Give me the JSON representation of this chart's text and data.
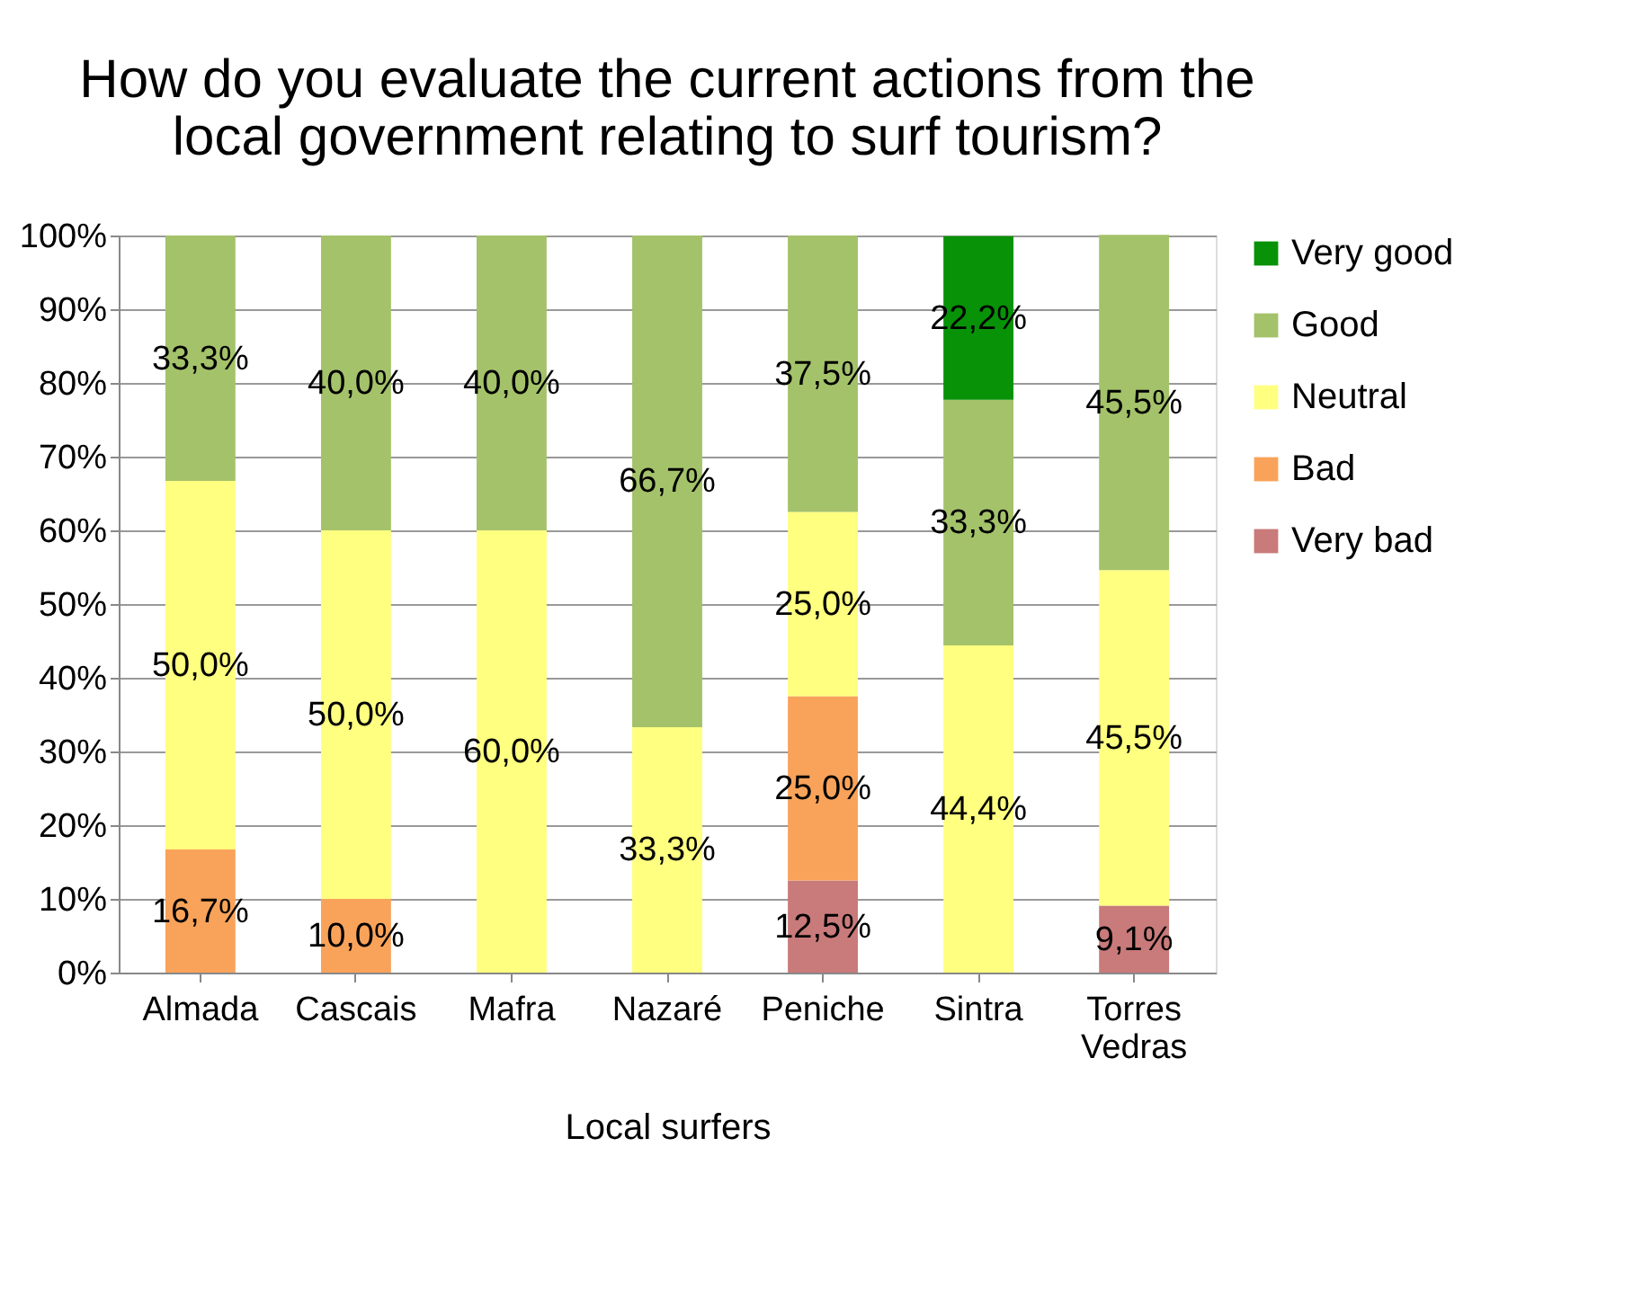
{
  "chart_data": {
    "type": "bar",
    "stacked": true,
    "title": "How do you evaluate the current actions from the local government relating to surf tourism?",
    "xlabel": "Local surfers",
    "categories": [
      "Almada",
      "Cascais",
      "Mafra",
      "Nazaré",
      "Peniche",
      "Sintra",
      "Torres Vedras"
    ],
    "series": [
      {
        "name": "Very bad",
        "color": "#c97a7a",
        "values": [
          null,
          null,
          null,
          null,
          12.5,
          null,
          9.1
        ],
        "value_labels": [
          null,
          null,
          null,
          null,
          "12,5%",
          null,
          "9,1%"
        ]
      },
      {
        "name": "Bad",
        "color": "#f9a35a",
        "values": [
          16.7,
          10.0,
          null,
          null,
          25.0,
          null,
          null
        ],
        "value_labels": [
          "16,7%",
          "10,0%",
          null,
          null,
          "25,0%",
          null,
          null
        ]
      },
      {
        "name": "Neutral",
        "color": "#ffff80",
        "values": [
          50.0,
          50.0,
          60.0,
          33.3,
          25.0,
          44.4,
          45.5
        ],
        "value_labels": [
          "50,0%",
          "50,0%",
          "60,0%",
          "33,3%",
          "25,0%",
          "44,4%",
          "45,5%"
        ]
      },
      {
        "name": "Good",
        "color": "#a4c26a",
        "values": [
          33.3,
          40.0,
          40.0,
          66.7,
          37.5,
          33.3,
          45.5
        ],
        "value_labels": [
          "33,3%",
          "40,0%",
          "40,0%",
          "66,7%",
          "37,5%",
          "33,3%",
          "45,5%"
        ]
      },
      {
        "name": "Very good",
        "color": "#079207",
        "values": [
          null,
          null,
          null,
          null,
          null,
          22.2,
          null
        ],
        "value_labels": [
          null,
          null,
          null,
          null,
          null,
          "22,2%",
          null
        ]
      }
    ],
    "ylim": [
      0,
      100
    ],
    "yticks": [
      {
        "value": 0,
        "label": "0%"
      },
      {
        "value": 10,
        "label": "10%"
      },
      {
        "value": 20,
        "label": "20%"
      },
      {
        "value": 30,
        "label": "30%"
      },
      {
        "value": 40,
        "label": "40%"
      },
      {
        "value": 50,
        "label": "50%"
      },
      {
        "value": 60,
        "label": "60%"
      },
      {
        "value": 70,
        "label": "70%"
      },
      {
        "value": 80,
        "label": "80%"
      },
      {
        "value": 90,
        "label": "90%"
      },
      {
        "value": 100,
        "label": "100%"
      }
    ],
    "grid": "y",
    "legend": "right"
  }
}
